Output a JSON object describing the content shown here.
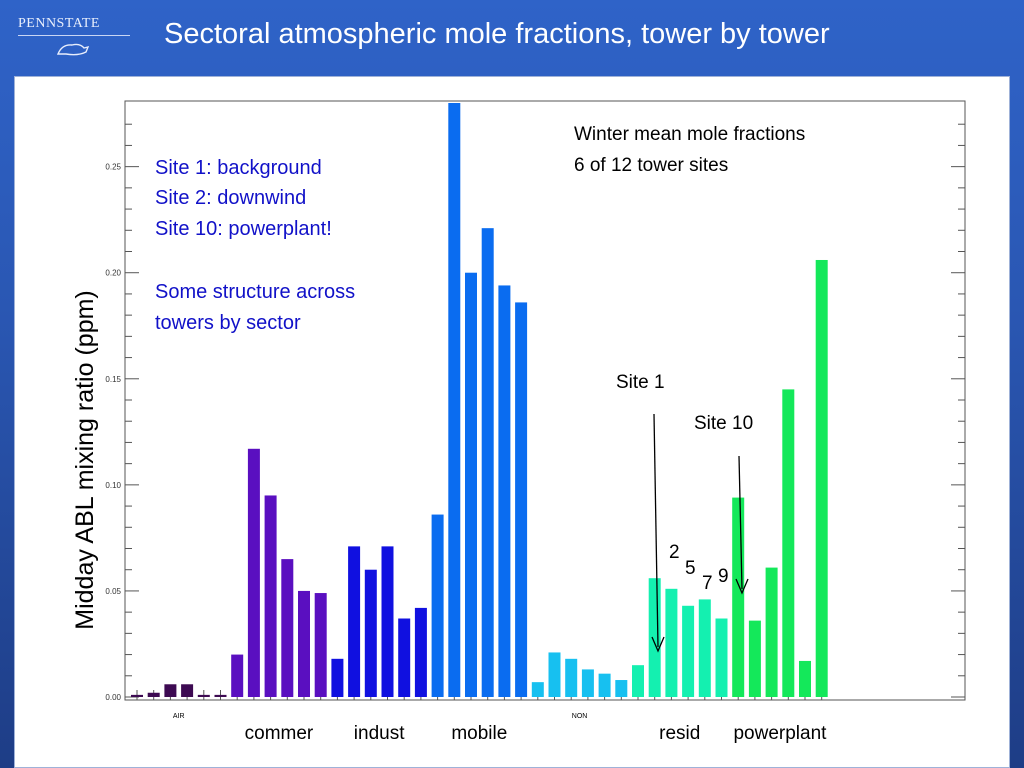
{
  "header": {
    "logo_text": "PENNSTATE",
    "title": "Sectoral atmospheric mole fractions, tower by tower"
  },
  "chart_data": {
    "type": "bar",
    "ylabel": "Midday ABL mixing ratio (ppm)",
    "ylim": [
      0,
      0.28
    ],
    "y_ticks": [
      "0.00",
      "0.05",
      "0.10",
      "0.15",
      "0.20",
      "0.25"
    ],
    "sector_labels": [
      {
        "label": "AIR",
        "size": "small"
      },
      {
        "label": "commer",
        "size": "large"
      },
      {
        "label": "indust",
        "size": "large"
      },
      {
        "label": "mobile",
        "size": "large"
      },
      {
        "label": "NON",
        "size": "small"
      },
      {
        "label": "resid",
        "size": "large"
      },
      {
        "label": "powerplant",
        "size": "large"
      }
    ],
    "sectors": [
      {
        "name": "AIR",
        "color": "#3d0a52",
        "values": [
          0.001,
          0.002,
          0.006,
          0.006,
          0.001,
          0.001
        ]
      },
      {
        "name": "commer",
        "color": "#5a0fc0",
        "values": [
          0.02,
          0.117,
          0.095,
          0.065,
          0.05,
          0.049
        ]
      },
      {
        "name": "indust",
        "color": "#1010e0",
        "values": [
          0.018,
          0.071,
          0.06,
          0.071,
          0.037,
          0.042
        ]
      },
      {
        "name": "mobile",
        "color": "#0a6cf0",
        "values": [
          0.086,
          0.28,
          0.2,
          0.221,
          0.194,
          0.186
        ]
      },
      {
        "name": "NON",
        "color": "#17c0f0",
        "values": [
          0.007,
          0.021,
          0.018,
          0.013,
          0.011,
          0.008
        ]
      },
      {
        "name": "resid",
        "color": "#14f0b0",
        "values": [
          0.015,
          0.056,
          0.051,
          0.043,
          0.046,
          0.037
        ]
      },
      {
        "name": "powerplant",
        "color": "#14e85a",
        "values": [
          0.094,
          0.036,
          0.061,
          0.145,
          0.017,
          0.206
        ]
      }
    ],
    "annotations": {
      "top_right": [
        "Winter mean mole fractions",
        "6 of 12 tower sites"
      ],
      "top_left": [
        "Site 1: background",
        "Site 2: downwind",
        "Site 10: powerplant!",
        "",
        "Some structure across",
        "towers by sector"
      ],
      "site1_label": "Site 1",
      "site10_label": "Site 10",
      "site_numbers": [
        "2",
        "5",
        "7",
        "9"
      ]
    }
  }
}
